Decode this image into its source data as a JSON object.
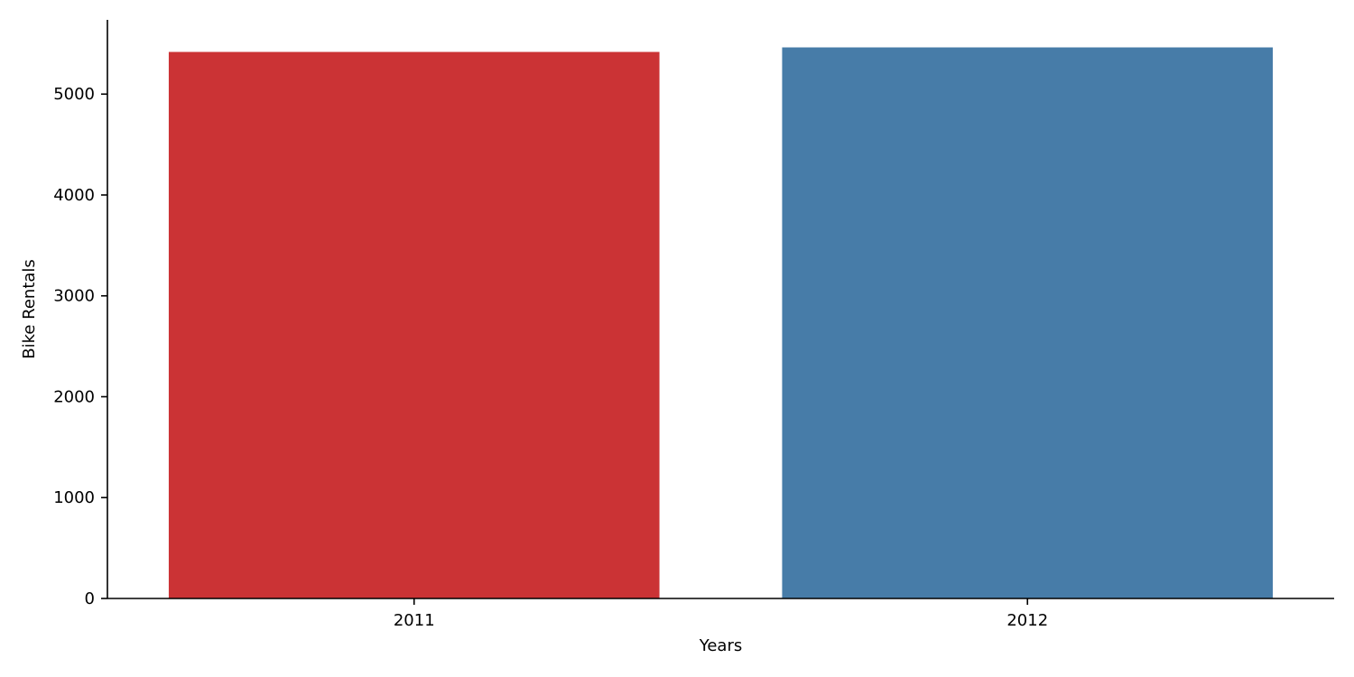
{
  "chart_data": {
    "type": "bar",
    "title": "",
    "xlabel": "Years",
    "ylabel": "Bike Rentals",
    "categories": [
      "2011",
      "2012"
    ],
    "values": [
      5418,
      5463
    ],
    "colors": [
      "#cb3335",
      "#477ca8"
    ],
    "ylim": [
      0,
      5736
    ],
    "yticks": [
      0,
      1000,
      2000,
      3000,
      4000,
      5000
    ],
    "grid": false,
    "legend": "none"
  }
}
